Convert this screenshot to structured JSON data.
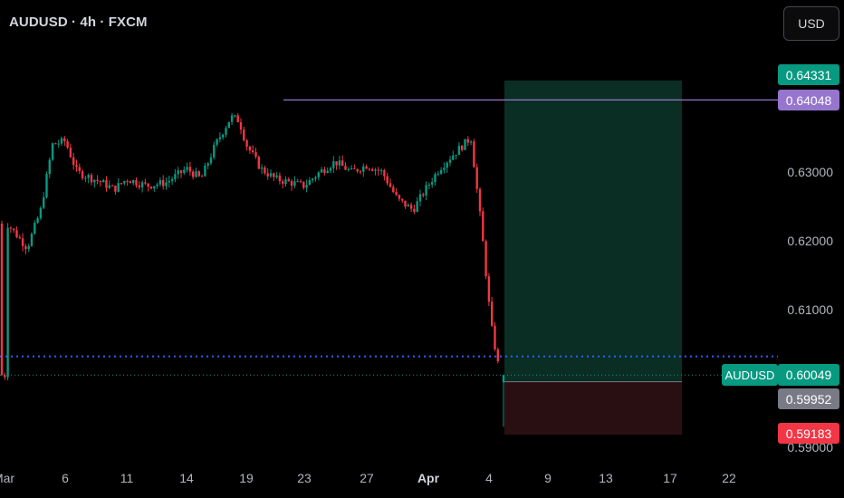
{
  "header": {
    "title": "AUDUSD · 4h · FXCM",
    "currency_button": "USD"
  },
  "price_labels": {
    "target": "0.64331",
    "horizontal_line": "0.64048",
    "symbol": "AUDUSD",
    "current": "0.60049",
    "entry": "0.59952",
    "stop": "0.59183"
  },
  "colors": {
    "up": "#089981",
    "down": "#f23645",
    "horizontal_line": "#9575cd",
    "blue_dotted_line": "#2962ff",
    "target_zone": "#0a2e24",
    "stop_zone": "#2a0f12",
    "background": "#000000"
  },
  "chart_data": {
    "type": "candlestick",
    "symbol": "AUDUSD",
    "interval": "4h",
    "source": "FXCM",
    "y_ticks": [
      "0.63000",
      "0.62000",
      "0.61000",
      "0.59000"
    ],
    "x_ticks": [
      "Mar",
      "6",
      "11",
      "14",
      "19",
      "23",
      "27",
      "Apr",
      "4",
      "9",
      "13",
      "17",
      "22"
    ],
    "ylim": [
      0.5885,
      0.6465
    ],
    "grid": false,
    "horizontal_line": 0.64048,
    "blue_dotted_line": 0.6032,
    "current_price": 0.60049,
    "position": {
      "type": "long",
      "entry": 0.59952,
      "target": 0.64331,
      "stop": 0.59183,
      "start": "Apr 5",
      "end": "Apr 17"
    },
    "close_path": [
      [
        "Mar 1",
        0.6225
      ],
      [
        "Mar 3",
        0.619
      ],
      [
        "Mar 4",
        0.6245
      ],
      [
        "Mar 5",
        0.634
      ],
      [
        "Mar 6",
        0.6345
      ],
      [
        "Mar 7",
        0.63
      ],
      [
        "Mar 9",
        0.6285
      ],
      [
        "Mar 10",
        0.6275
      ],
      [
        "Mar 11",
        0.629
      ],
      [
        "Mar 12",
        0.628
      ],
      [
        "Mar 13",
        0.6285
      ],
      [
        "Mar 14",
        0.6305
      ],
      [
        "Mar 15",
        0.629
      ],
      [
        "Mar 16",
        0.634
      ],
      [
        "Mar 17",
        0.638
      ],
      [
        "Mar 18",
        0.6375
      ],
      [
        "Mar 19",
        0.634
      ],
      [
        "Mar 20",
        0.6305
      ],
      [
        "Mar 21",
        0.629
      ],
      [
        "Mar 23",
        0.628
      ],
      [
        "Mar 24",
        0.63
      ],
      [
        "Mar 25",
        0.6315
      ],
      [
        "Mar 26",
        0.63
      ],
      [
        "Mar 27",
        0.631
      ],
      [
        "Mar 28",
        0.63
      ],
      [
        "Mar 29",
        0.626
      ],
      [
        "Mar 30",
        0.6245
      ],
      [
        "Mar 31",
        0.6275
      ],
      [
        "Apr 1",
        0.6305
      ],
      [
        "Apr 2",
        0.6325
      ],
      [
        "Apr 3",
        0.635
      ],
      [
        "Apr 3b",
        0.6215
      ],
      [
        "Apr 4",
        0.608
      ],
      [
        "Apr 4b",
        0.6005
      ]
    ]
  }
}
